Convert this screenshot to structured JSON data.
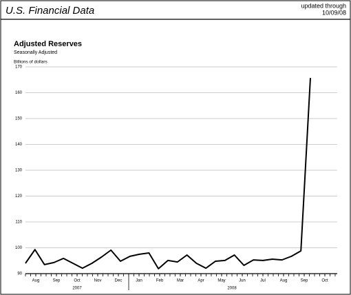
{
  "header": {
    "title": "U.S. Financial Data",
    "updated_label": "updated through",
    "updated_date": "10/09/08"
  },
  "chart_data": {
    "type": "line",
    "title": "Adjusted Reserves",
    "subtitle": "Seasonally Adjusted",
    "y_label": "Billions of dollars",
    "x": [
      -0.5,
      -0.04,
      0.42,
      0.88,
      1.34,
      1.8,
      2.26,
      2.72,
      3.18,
      3.64,
      4.1,
      4.56,
      5.02,
      5.48,
      5.94,
      6.4,
      6.86,
      7.32,
      7.78,
      8.24,
      8.7,
      9.16,
      9.62,
      10.08,
      10.54,
      11.0,
      11.46,
      11.92,
      12.38,
      12.84,
      13.3
    ],
    "series": [
      {
        "name": "Adjusted Reserves",
        "color": "#000000",
        "values": [
          94.0,
          99.3,
          93.5,
          94.3,
          95.9,
          94.0,
          92.1,
          94.0,
          96.4,
          99.1,
          94.8,
          96.7,
          97.5,
          98.0,
          91.9,
          95.1,
          94.5,
          97.2,
          94.0,
          92.1,
          94.8,
          95.1,
          97.2,
          93.2,
          95.3,
          95.1,
          95.6,
          95.3,
          96.7,
          98.8,
          165.7
        ]
      }
    ],
    "xlim": [
      -0.5,
      14.6
    ],
    "xticks": [
      {
        "value": 0,
        "label": "Aug"
      },
      {
        "value": 1,
        "label": "Sep"
      },
      {
        "value": 2,
        "label": "Oct"
      },
      {
        "value": 3,
        "label": "Nov"
      },
      {
        "value": 4,
        "label": "Dec"
      },
      {
        "value": 5,
        "label": "Jan"
      },
      {
        "value": 6,
        "label": "Feb"
      },
      {
        "value": 7,
        "label": "Mar"
      },
      {
        "value": 8,
        "label": "Apr"
      },
      {
        "value": 9,
        "label": "May"
      },
      {
        "value": 10,
        "label": "Jun"
      },
      {
        "value": 11,
        "label": "Jul"
      },
      {
        "value": 12,
        "label": "Aug"
      },
      {
        "value": 13,
        "label": "Sep"
      },
      {
        "value": 14,
        "label": "Oct"
      }
    ],
    "year_labels": [
      {
        "value": 2,
        "label": "2007"
      },
      {
        "value": 9.5,
        "label": "2008"
      }
    ],
    "ylim": [
      90,
      170
    ],
    "yticks": [
      90,
      100,
      110,
      120,
      130,
      140,
      150,
      160,
      170
    ],
    "grid": true
  }
}
